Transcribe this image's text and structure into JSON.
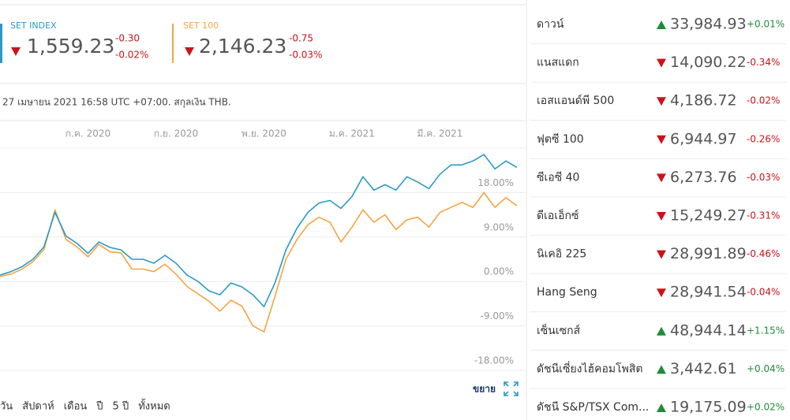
{
  "quotes": [
    {
      "value": "1,559.23",
      "change": "-0.30",
      "change_percent": "-0.02%"
    },
    {
      "value": "2,146.23",
      "change": "-0.75",
      "change_percent": "-0.03%"
    }
  ],
  "timestamp": "27 เมษายน 2021 16:58 UTC +07:00. สกุลเงิน THB.",
  "chart_data": {
    "type": "line",
    "categories": [
      null,
      null,
      null,
      null,
      null,
      null,
      null,
      null,
      "ก.ค. 2020",
      null,
      null,
      null,
      null,
      null,
      null,
      null,
      "ก.ย. 2020",
      null,
      null,
      null,
      null,
      null,
      null,
      null,
      "พ.ย. 2020",
      null,
      null,
      null,
      null,
      null,
      null,
      null,
      "ม.ค. 2021",
      null,
      null,
      null,
      null,
      null,
      null,
      null,
      "มี.ค. 2021",
      null,
      null,
      null,
      null,
      null,
      null,
      null
    ],
    "series": [
      {
        "name": "SET INDEX",
        "color": "#2b9ac4",
        "values": [
          1.3,
          2,
          3,
          4.5,
          7,
          14,
          9.2,
          7.7,
          5.7,
          8,
          6.9,
          6.4,
          4.5,
          4.5,
          3.7,
          5.3,
          3.7,
          1.3,
          0,
          -1.9,
          -2.7,
          -0.3,
          -1.1,
          -2.7,
          -5.1,
          -0.3,
          6.4,
          10.8,
          14,
          15.9,
          16.4,
          14.8,
          17.2,
          21.2,
          18.5,
          19.6,
          18.5,
          21.2,
          20.1,
          18.8,
          21.7,
          23.6,
          23.6,
          24.4,
          25.7,
          22.8,
          24.4,
          23.1
        ]
      },
      {
        "name": "SET 100",
        "color": "#f5a442",
        "values": [
          1,
          1.5,
          2.5,
          4,
          6.5,
          14.5,
          8.5,
          7,
          5,
          7.5,
          6,
          5.8,
          2.5,
          2.5,
          2,
          3.5,
          1.5,
          -1,
          -2.5,
          -4,
          -6,
          -3.8,
          -5,
          -9,
          -10.2,
          -3,
          4.5,
          8.5,
          11.5,
          13,
          12,
          8,
          11,
          14.5,
          12,
          13.5,
          10.5,
          12.5,
          13,
          11,
          14,
          15,
          16,
          15,
          18,
          15,
          17,
          15.3
        ]
      }
    ],
    "ylim": [
      -18,
      27
    ],
    "yticks": [
      {
        "value": -18,
        "label": "-18.00%"
      },
      {
        "value": -9,
        "label": "-9.00%"
      },
      {
        "value": 0,
        "label": "0.00%"
      },
      {
        "value": 9,
        "label": "9.00%"
      },
      {
        "value": 18,
        "label": "18.00%"
      }
    ]
  },
  "expand_label": "ขยาย",
  "ranges": [
    "วัน",
    "สัปดาห์",
    "เดือน",
    "ปี",
    "5 ปี",
    "ทั้งหมด"
  ],
  "markets": [
    {
      "name": "ดาวน์",
      "value": "33,984.93",
      "change": "+0.01%"
    },
    {
      "name": "แนสแดก",
      "value": "14,090.22",
      "change": "-0.34%"
    },
    {
      "name": "เอสแอนด์พี 500",
      "value": "4,186.72",
      "change": "-0.02%"
    },
    {
      "name": "ฟุตซี 100",
      "value": "6,944.97",
      "change": "-0.26%"
    },
    {
      "name": "ซีเอซี 40",
      "value": "6,273.76",
      "change": "-0.03%"
    },
    {
      "name": "ดีเอเอ็กซ์",
      "value": "15,249.27",
      "change": "-0.31%"
    },
    {
      "name": "นิเคอิ 225",
      "value": "28,991.89",
      "change": "-0.46%"
    },
    {
      "name": "Hang Seng",
      "value": "28,941.54",
      "change": "-0.04%"
    },
    {
      "name": "เซ็นเซกส์",
      "value": "48,944.14",
      "change": "+1.15%"
    },
    {
      "name": "ดัชนีเซี่ยงไฮ้คอมโพสิต",
      "value": "3,442.61",
      "change": "+0.04%"
    },
    {
      "name": "ดัชนี S&P/TSX Com...",
      "value": "19,175.09",
      "change": "+0.02%"
    }
  ]
}
